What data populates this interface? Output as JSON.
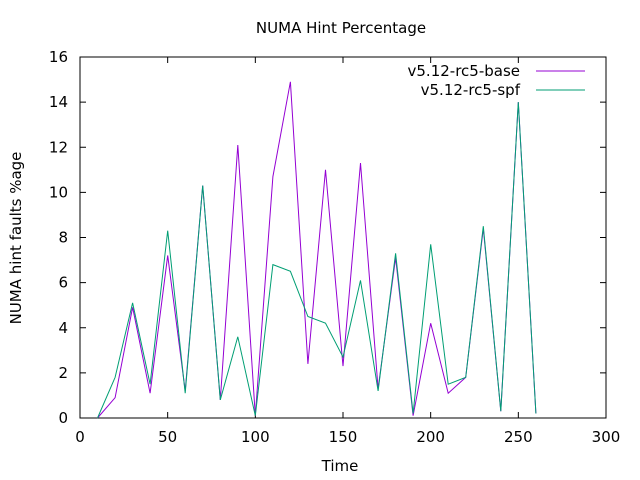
{
  "chart_data": {
    "type": "line",
    "title": "NUMA Hint Percentage",
    "xlabel": "Time",
    "ylabel": "NUMA hint faults %age",
    "xlim": [
      0,
      300
    ],
    "ylim": [
      0,
      16
    ],
    "x_ticks": [
      0,
      50,
      100,
      150,
      200,
      250,
      300
    ],
    "y_ticks": [
      0,
      2,
      4,
      6,
      8,
      10,
      12,
      14,
      16
    ],
    "grid": false,
    "legend_position": "top-right",
    "series": [
      {
        "name": "v5.12-rc5-base",
        "color": "#9400d3",
        "x": [
          10,
          20,
          30,
          40,
          50,
          60,
          70,
          80,
          90,
          100,
          110,
          120,
          130,
          140,
          150,
          160,
          170,
          180,
          190,
          200,
          210,
          220,
          230,
          240,
          250,
          260
        ],
        "y": [
          0.0,
          0.9,
          4.9,
          1.1,
          7.2,
          1.2,
          10.3,
          0.8,
          12.1,
          0.1,
          10.7,
          14.9,
          2.4,
          11.0,
          2.3,
          11.3,
          1.3,
          7.1,
          0.1,
          4.2,
          1.1,
          1.8,
          8.4,
          0.3,
          14.0,
          0.2
        ]
      },
      {
        "name": "v5.12-rc5-spf",
        "color": "#009e73",
        "x": [
          10,
          20,
          30,
          40,
          50,
          60,
          70,
          80,
          90,
          100,
          110,
          120,
          130,
          140,
          150,
          160,
          170,
          180,
          190,
          200,
          210,
          220,
          230,
          240,
          250,
          260
        ],
        "y": [
          0.0,
          1.8,
          5.1,
          1.5,
          8.3,
          1.1,
          10.3,
          0.8,
          3.6,
          0.1,
          6.8,
          6.5,
          4.5,
          4.2,
          2.7,
          6.1,
          1.2,
          7.3,
          0.2,
          7.7,
          1.5,
          1.8,
          8.5,
          0.3,
          14.0,
          0.2
        ]
      }
    ]
  }
}
